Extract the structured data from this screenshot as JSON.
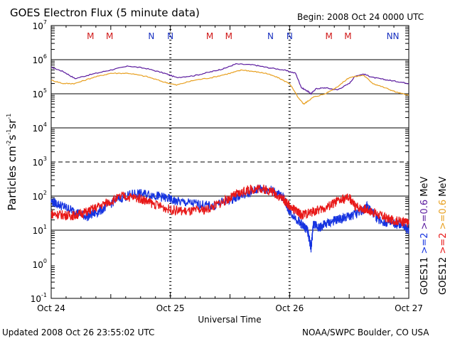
{
  "header": {
    "title": "GOES Electron Flux (5 minute data)",
    "begin": "Begin: 2008 Oct 24 0000 UTC"
  },
  "footer": {
    "updated": "Updated 2008 Oct 26 23:55:02 UTC",
    "source": "NOAA/SWPC Boulder, CO USA"
  },
  "colors": {
    "goes11_high": "#5a1a9e",
    "goes12_high": "#e8a020",
    "goes11_low": "#1533e0",
    "goes12_low": "#e81818",
    "marker_m": "#d01818",
    "marker_n": "#1830c0"
  },
  "chart_data": {
    "type": "line",
    "xlabel": "Universal Time",
    "ylabel": {
      "base": "Particles cm",
      "exp1": "-2",
      "mid1": "s",
      "exp2": "-1",
      "mid2": "sr",
      "exp3": "-1"
    },
    "x_range_days": [
      0,
      3
    ],
    "x_ticks": [
      {
        "day": 0,
        "label": "Oct 24"
      },
      {
        "day": 1,
        "label": "Oct 25"
      },
      {
        "day": 2,
        "label": "Oct 26"
      },
      {
        "day": 3,
        "label": "Oct 27"
      }
    ],
    "y_scale": "log",
    "y_range_log10": [
      -1,
      7
    ],
    "y_ticks": [
      {
        "exp": 7,
        "base": "10",
        "sup": "7"
      },
      {
        "exp": 6,
        "base": "10",
        "sup": "6"
      },
      {
        "exp": 5,
        "base": "10",
        "sup": "5"
      },
      {
        "exp": 4,
        "base": "10",
        "sup": "4"
      },
      {
        "exp": 3,
        "base": "10",
        "sup": "3"
      },
      {
        "exp": 2,
        "base": "10",
        "sup": "2"
      },
      {
        "exp": 1,
        "base": "10",
        "sup": "1"
      },
      {
        "exp": 0,
        "base": "10",
        "sup": "0"
      },
      {
        "exp": -1,
        "base": "10",
        "sup": "-1"
      }
    ],
    "dashed_gridlines": [
      3
    ],
    "solid_gridlines": [
      1,
      2,
      4,
      5,
      6
    ],
    "markers": [
      {
        "day": 0.33,
        "label": "M"
      },
      {
        "day": 0.49,
        "label": "M"
      },
      {
        "day": 0.84,
        "label": "N"
      },
      {
        "day": 1.0,
        "label": "N"
      },
      {
        "day": 1.33,
        "label": "M"
      },
      {
        "day": 1.49,
        "label": "M"
      },
      {
        "day": 1.84,
        "label": "N"
      },
      {
        "day": 2.0,
        "label": "N"
      },
      {
        "day": 2.33,
        "label": "M"
      },
      {
        "day": 2.49,
        "label": "M"
      },
      {
        "day": 2.84,
        "label": "N"
      },
      {
        "day": 3.0,
        "label": "N"
      }
    ],
    "legend": {
      "right_col1": [
        {
          "text": "GOES11",
          "color": "#000000"
        },
        {
          "text": ">=2",
          "color": "#1533e0"
        },
        {
          "text": ">=0.6",
          "color": "#5a1a9e"
        },
        {
          "text": "MeV",
          "color": "#000000"
        }
      ],
      "right_col2": [
        {
          "text": "GOES12",
          "color": "#000000"
        },
        {
          "text": ">=2",
          "color": "#e81818"
        },
        {
          "text": ">=0.6",
          "color": "#e8a020"
        },
        {
          "text": "MeV",
          "color": "#000000"
        }
      ]
    },
    "series": [
      {
        "color": "#5a1a9e",
        "x": [
          0,
          0.1,
          0.2,
          0.35,
          0.5,
          0.65,
          0.8,
          0.95,
          1.05,
          1.2,
          1.35,
          1.45,
          1.55,
          1.7,
          1.8,
          1.95,
          2.05,
          2.1,
          2.15,
          2.18,
          2.22,
          2.3,
          2.4,
          2.5,
          2.55,
          2.62,
          2.7,
          2.8,
          2.9,
          3.0
        ],
        "y": [
          600000,
          450000,
          280000,
          380000,
          500000,
          650000,
          550000,
          400000,
          300000,
          340000,
          450000,
          550000,
          750000,
          700000,
          600000,
          500000,
          400000,
          150000,
          120000,
          100000,
          140000,
          150000,
          130000,
          200000,
          330000,
          380000,
          300000,
          260000,
          230000,
          200000
        ]
      },
      {
        "color": "#e8a020",
        "x": [
          0,
          0.1,
          0.2,
          0.35,
          0.5,
          0.65,
          0.8,
          0.95,
          1.05,
          1.2,
          1.35,
          1.5,
          1.6,
          1.7,
          1.8,
          1.9,
          2.0,
          2.08,
          2.12,
          2.15,
          2.2,
          2.3,
          2.4,
          2.5,
          2.62,
          2.7,
          2.8,
          2.9,
          3.0
        ],
        "y": [
          250000,
          200000,
          200000,
          300000,
          400000,
          400000,
          320000,
          220000,
          180000,
          250000,
          300000,
          400000,
          500000,
          450000,
          400000,
          300000,
          200000,
          70000,
          50000,
          60000,
          80000,
          100000,
          160000,
          300000,
          350000,
          200000,
          150000,
          110000,
          90000
        ]
      },
      {
        "color": "#1533e0",
        "x": [
          0,
          0.1,
          0.2,
          0.3,
          0.4,
          0.55,
          0.7,
          0.85,
          0.95,
          1.05,
          1.2,
          1.35,
          1.5,
          1.65,
          1.75,
          1.85,
          1.95,
          2.0,
          2.1,
          2.15,
          2.18,
          2.2,
          2.25,
          2.3,
          2.4,
          2.5,
          2.6,
          2.65,
          2.75,
          2.85,
          2.95,
          3.0
        ],
        "y": [
          70,
          50,
          35,
          25,
          35,
          80,
          120,
          110,
          90,
          70,
          60,
          50,
          80,
          120,
          170,
          150,
          90,
          35,
          15,
          10,
          3,
          15,
          12,
          15,
          20,
          25,
          35,
          50,
          20,
          15,
          14,
          10
        ]
      },
      {
        "color": "#e81818",
        "x": [
          0,
          0.1,
          0.2,
          0.3,
          0.45,
          0.6,
          0.75,
          0.85,
          1.0,
          1.15,
          1.3,
          1.45,
          1.55,
          1.65,
          1.75,
          1.85,
          1.95,
          2.0,
          2.1,
          2.2,
          2.3,
          2.4,
          2.5,
          2.55,
          2.65,
          2.75,
          2.85,
          2.95,
          3.0
        ],
        "y": [
          30,
          28,
          27,
          35,
          60,
          100,
          85,
          60,
          40,
          35,
          40,
          70,
          110,
          150,
          170,
          140,
          80,
          50,
          28,
          35,
          45,
          70,
          90,
          50,
          40,
          28,
          20,
          18,
          16
        ]
      }
    ]
  }
}
